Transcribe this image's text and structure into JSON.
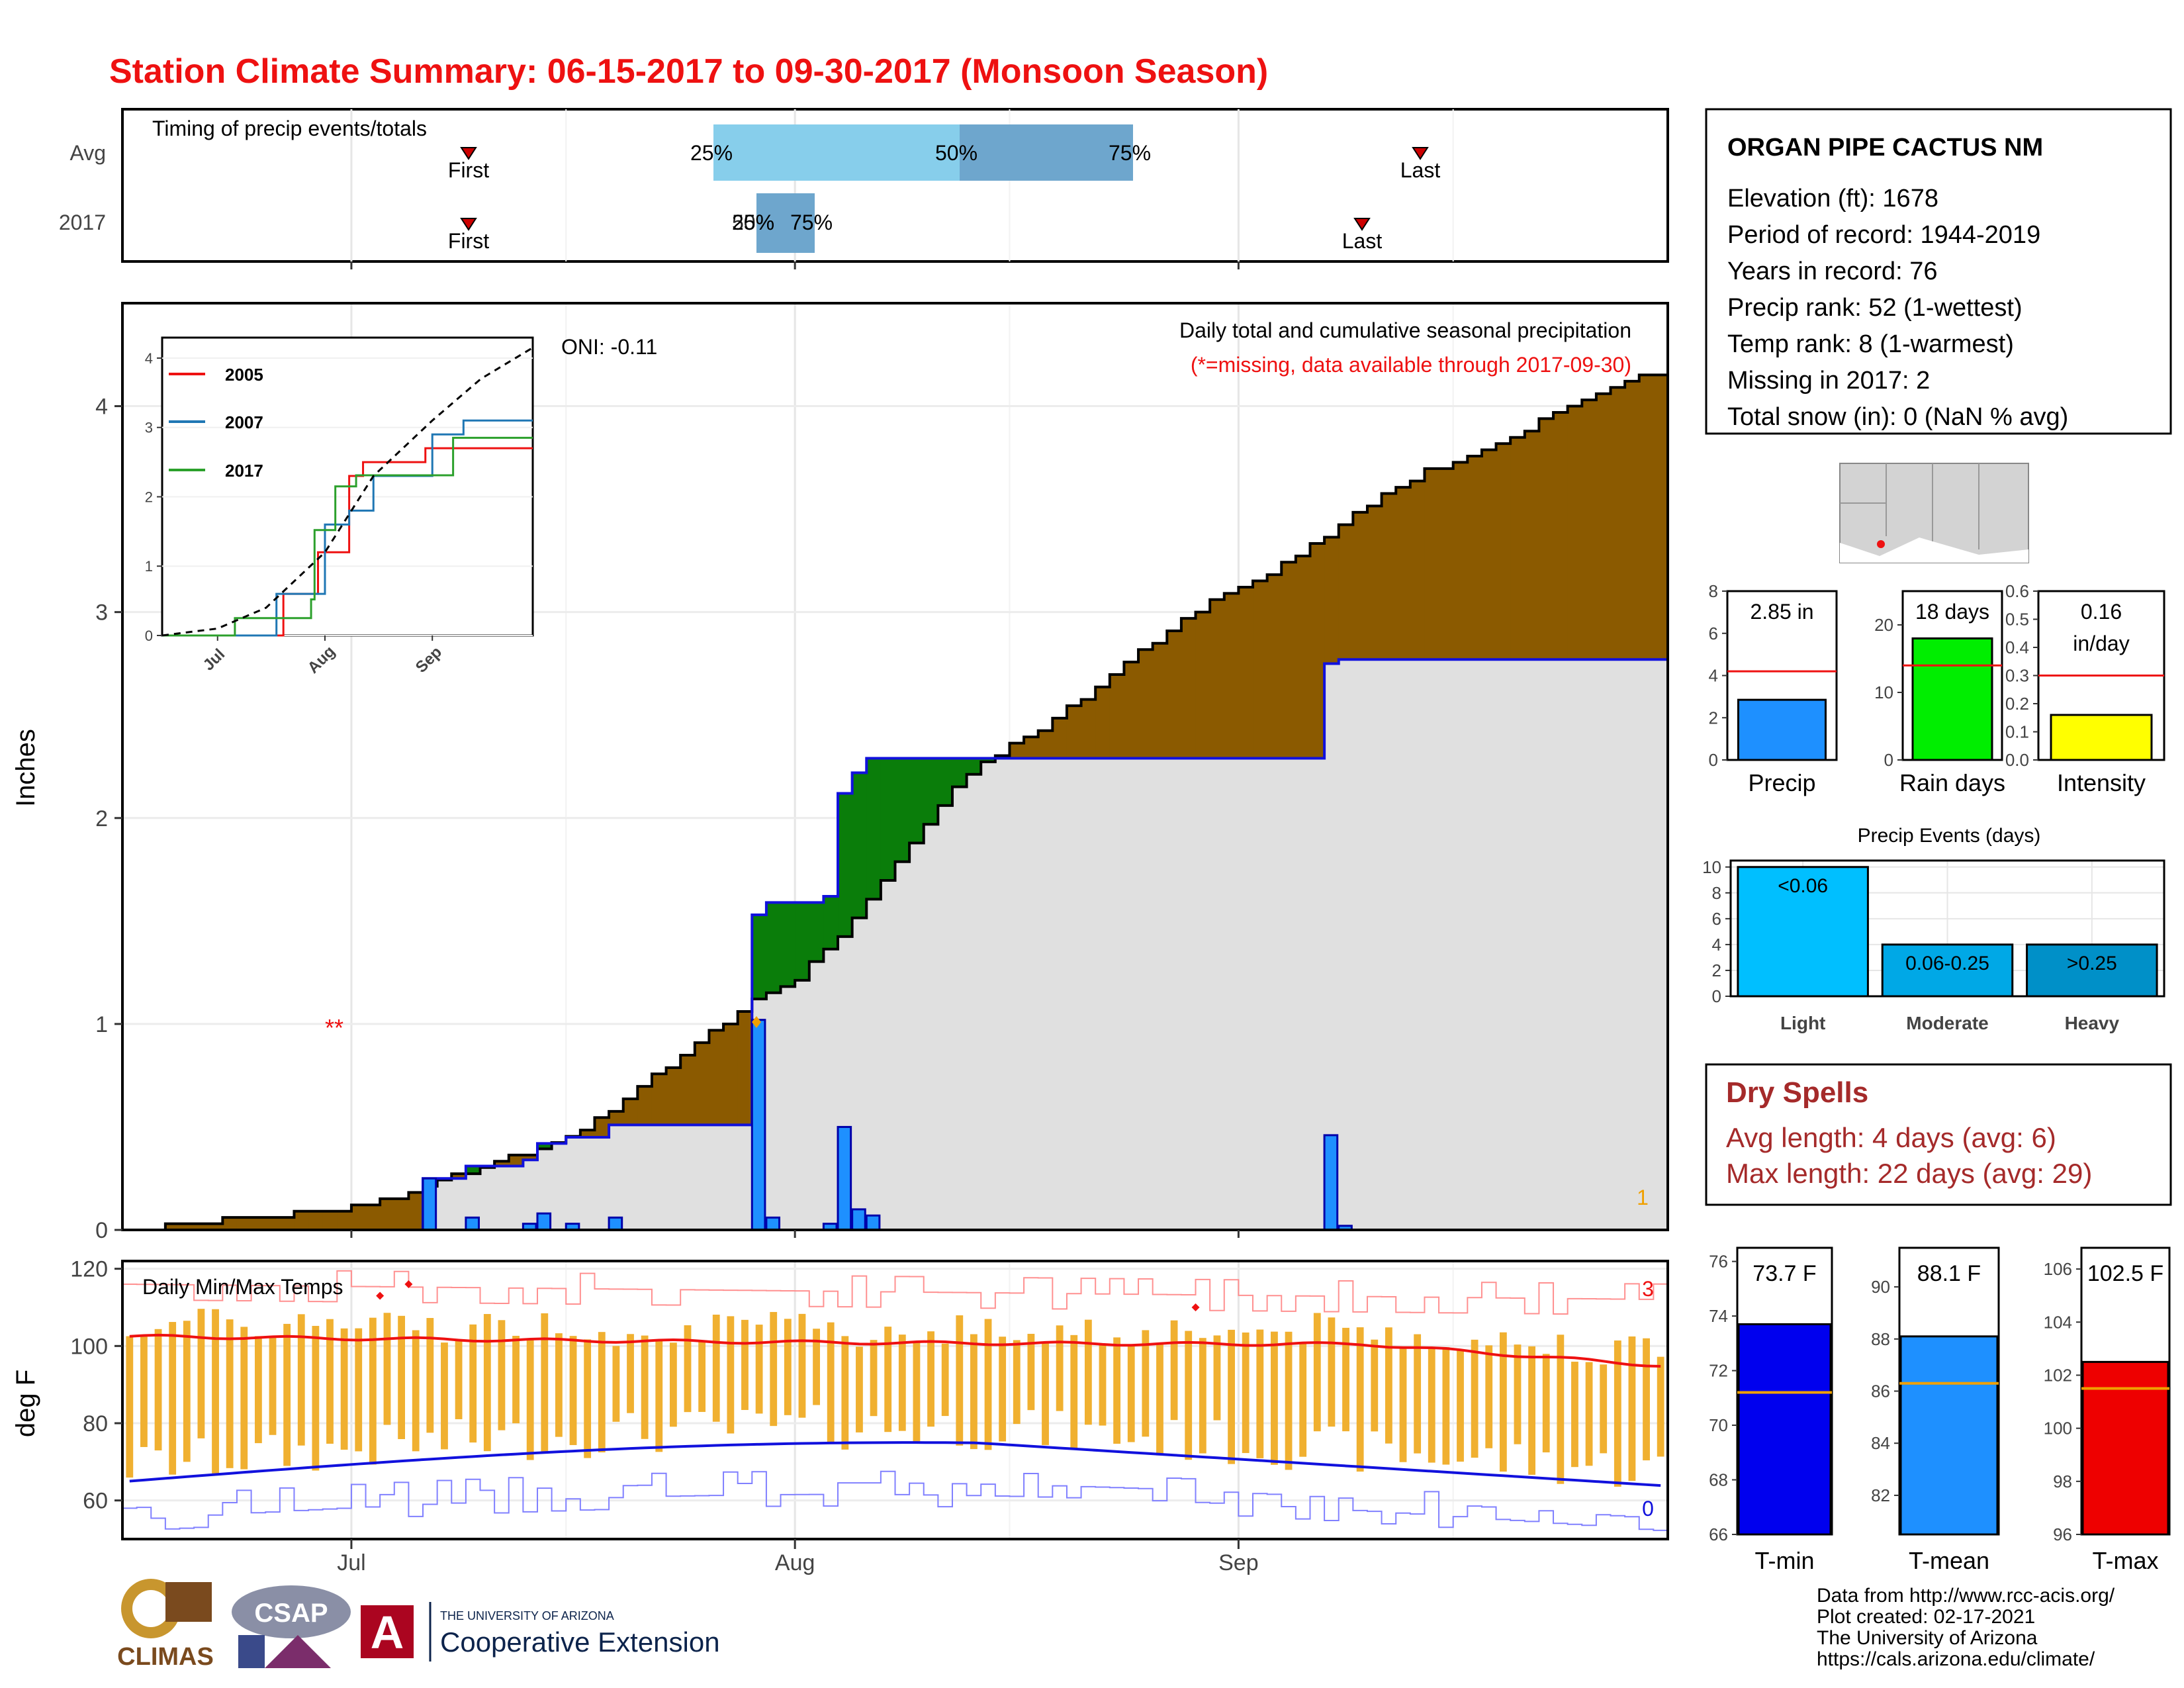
{
  "title": "Station Climate Summary: 06-15-2017 to 09-30-2017 (Monsoon Season)",
  "colors": {
    "title": "#ee1111",
    "cum_2017": "#e0e0e0",
    "cum_line": "#1111dd",
    "above_avg": "#8b5a00",
    "below_avg": "#0a7d0a",
    "daily_bar": "#1e90ff",
    "temp_bar": "#f0b030",
    "tmax_line": "#ee1111",
    "tmin_line": "#1111dd",
    "dry_spells": "#a52a2a"
  },
  "timing": {
    "label": "Timing of precip events/totals",
    "rows": [
      "Avg",
      "2017"
    ],
    "first_label": "First",
    "last_label": "Last",
    "pct_labels": [
      "25%",
      "50%",
      "75%"
    ],
    "pct_2017_text": "25%",
    "pct_2017_text2": "50%",
    "pct_2017_text3": "75%"
  },
  "precip_panel": {
    "ylabel": "Inches",
    "oni": "ONI: -0.11",
    "note1": "Daily total and cumulative seasonal precipitation",
    "note2": "(*=missing, data available through 2017-09-30)",
    "missing_marker": "**",
    "missing_count": "1",
    "ylim": [
      0,
      4.5
    ],
    "yticks": [
      "0",
      "1",
      "2",
      "3",
      "4"
    ]
  },
  "temp_panel": {
    "title": "Daily Min/Max Temps",
    "ylabel": "deg F",
    "yticks": [
      "60",
      "80",
      "100",
      "120"
    ],
    "ylim": [
      50,
      122
    ],
    "count_high": "3",
    "count_low": "0"
  },
  "x_axis": {
    "ticks": [
      "Jul",
      "Aug",
      "Sep"
    ]
  },
  "inset": {
    "series": [
      "2005",
      "2007",
      "2017"
    ],
    "yticks": [
      "0",
      "1",
      "2",
      "3",
      "4"
    ],
    "xticks": [
      "Jul",
      "Aug",
      "Sep"
    ]
  },
  "station": {
    "name": "ORGAN PIPE CACTUS NM",
    "lines": [
      "Elevation (ft): 1678",
      "Period of record: 1944-2019",
      "Years in record: 76",
      "Precip rank: 52 (1-wettest)",
      "Temp rank: 8 (1-warmest)",
      "Missing in 2017: 2",
      "Total snow (in): 0 (NaN % avg)"
    ]
  },
  "mini_bars": [
    {
      "label": "Precip",
      "value_text": "2.85 in",
      "value": 2.85,
      "avg": 4.2,
      "ymax": 8,
      "ticks": [
        "0",
        "2",
        "4",
        "6",
        "8"
      ],
      "color": "#1e90ff"
    },
    {
      "label": "Rain days",
      "value_text": "18 days",
      "value": 18,
      "avg": 14,
      "ymax": 25,
      "ticks": [
        "0",
        "10",
        "20"
      ],
      "color": "#00ee00"
    },
    {
      "label": "Intensity",
      "value_text": "0.16",
      "value_text2": "in/day",
      "value": 0.16,
      "avg": 0.3,
      "ymax": 0.6,
      "ticks": [
        "0.0",
        "0.1",
        "0.2",
        "0.3",
        "0.4",
        "0.5",
        "0.6"
      ],
      "color": "#ffff00"
    }
  ],
  "events": {
    "title": "Precip Events (days)",
    "categories": [
      "Light",
      "Moderate",
      "Heavy"
    ],
    "bar_labels": [
      "<0.06",
      "0.06-0.25",
      ">0.25"
    ],
    "values": [
      10,
      4,
      4
    ],
    "ticks": [
      "0",
      "2",
      "4",
      "6",
      "8",
      "10"
    ],
    "colors": [
      "#00bfff",
      "#00a8e6",
      "#0090c8"
    ]
  },
  "dry_spells": {
    "title": "Dry Spells",
    "avg_line": "Avg length: 4 days (avg: 6)",
    "max_line": "Max length: 22 days (avg: 29)"
  },
  "temp_bars": [
    {
      "label": "T-min",
      "value_text": "73.7 F",
      "value": 73.7,
      "avg": 71.2,
      "ymin": 66,
      "ymax": 76.5,
      "ticks": [
        "66",
        "68",
        "70",
        "72",
        "74",
        "76"
      ],
      "color": "#0000ee"
    },
    {
      "label": "T-mean",
      "value_text": "88.1 F",
      "value": 88.1,
      "avg": 86.3,
      "ymin": 80.5,
      "ymax": 91.5,
      "ticks": [
        "82",
        "84",
        "86",
        "88",
        "90"
      ],
      "color": "#1e90ff"
    },
    {
      "label": "T-max",
      "value_text": "102.5 F",
      "value": 102.5,
      "avg": 101.5,
      "ymin": 96,
      "ymax": 106.8,
      "ticks": [
        "96",
        "98",
        "100",
        "102",
        "104",
        "106"
      ],
      "color": "#ee0000"
    }
  ],
  "credits": [
    "Data from http://www.rcc-acis.org/",
    "Plot created: 02-17-2021",
    "The University of Arizona",
    "https://cals.arizona.edu/climate/"
  ],
  "logos": {
    "climas": "CLIMAS",
    "csap": "CSAP",
    "ua_small": "THE UNIVERSITY OF ARIZONA",
    "ua_big": "Cooperative Extension"
  },
  "chart_data": [
    {
      "type": "area",
      "title": "Daily total and cumulative seasonal precipitation",
      "ylabel": "Inches",
      "ylim": [
        0,
        4.5
      ],
      "series": [
        {
          "name": "",
          "x": [
            "2017-06-15",
            "2017-07-01",
            "2017-07-15",
            "2017-07-28",
            "2017-07-29",
            "2017-08-03",
            "2017-08-04",
            "2017-08-10",
            "2017-08-31",
            "2017-09-07",
            "2017-09-30"
          ],
          "values": [
            0,
            0,
            0.25,
            0.52,
            1.52,
            1.65,
            2.15,
            2.31,
            2.32,
            2.85,
            2.85
          ]
        },
        {
          "name": "",
          "x": [
            "2017-06-15",
            "2017-07-01",
            "2017-07-15",
            "2017-08-01",
            "2017-08-15",
            "2017-09-01",
            "2017-09-15",
            "2017-09-30"
          ],
          "values": [
            0,
            0.1,
            0.4,
            1.2,
            2.3,
            3.1,
            3.7,
            4.15
          ]
        }
      ],
      "daily_precip": [
        {
          "date": "2017-07-06",
          "value": 0.25
        },
        {
          "date": "2017-07-09",
          "value": 0.06
        },
        {
          "date": "2017-07-13",
          "value": 0.03
        },
        {
          "date": "2017-07-14",
          "value": 0.08
        },
        {
          "date": "2017-07-16",
          "value": 0.03
        },
        {
          "date": "2017-07-19",
          "value": 0.06
        },
        {
          "date": "2017-07-29",
          "value": 1.02
        },
        {
          "date": "2017-07-30",
          "value": 0.06
        },
        {
          "date": "2017-08-03",
          "value": 0.03
        },
        {
          "date": "2017-08-04",
          "value": 0.5
        },
        {
          "date": "2017-08-05",
          "value": 0.1
        },
        {
          "date": "2017-08-06",
          "value": 0.07
        },
        {
          "date": "2017-09-07",
          "value": 0.46
        },
        {
          "date": "2017-09-08",
          "value": 0.02
        }
      ]
    },
    {
      "type": "line",
      "title": "",
      "series": [
        {
          "name": "2005",
          "x": [
            "06-15",
            "07-20",
            "07-30",
            "08-08",
            "08-12",
            "08-30",
            "09-30"
          ],
          "values": [
            0,
            0.6,
            1.2,
            2.3,
            2.5,
            2.7,
            2.7
          ]
        },
        {
          "name": "2007",
          "x": [
            "06-15",
            "07-18",
            "08-01",
            "08-08",
            "08-15",
            "09-01",
            "09-10",
            "09-30"
          ],
          "values": [
            0,
            0.6,
            1.6,
            1.8,
            2.3,
            2.9,
            3.1,
            3.1
          ]
        },
        {
          "name": "2017",
          "x": [
            "06-15",
            "07-06",
            "07-28",
            "07-29",
            "08-04",
            "08-10",
            "09-07",
            "09-30"
          ],
          "values": [
            0,
            0.25,
            0.52,
            1.52,
            2.15,
            2.31,
            2.85,
            2.85
          ]
        }
      ]
    },
    {
      "type": "bar",
      "title": "Daily Min/Max Temps",
      "ylabel": "deg F",
      "ylim": [
        50,
        122
      ],
      "series": [
        {
          "name": "",
          "note": "daily max/min ranges approx",
          "tmax_mean": 101,
          "tmin_mean": 72
        }
      ]
    }
  ]
}
